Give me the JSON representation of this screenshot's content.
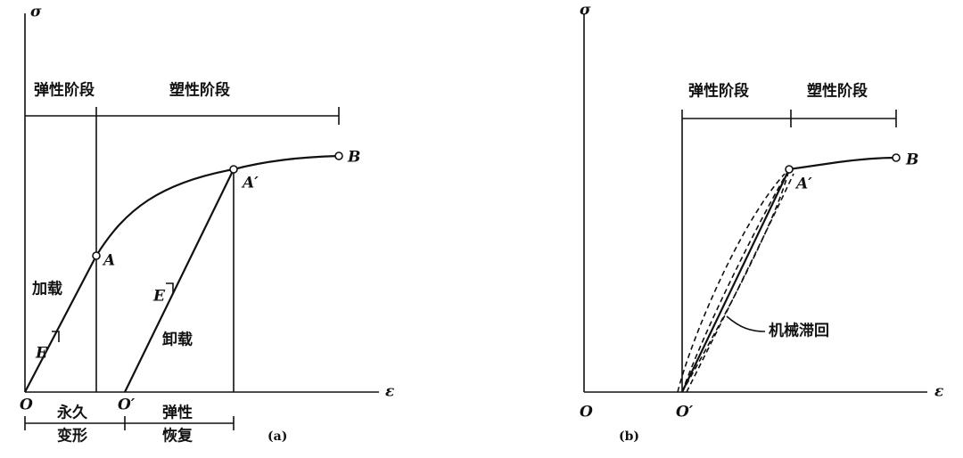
{
  "panel_a": {
    "sigma": "σ",
    "elastic_stage": "弹性阶段",
    "plastic_stage": "塑性阶段",
    "point_b": "B",
    "point_a_prime": "A′",
    "point_a": "A",
    "loading": "加载",
    "modulus_left": "E",
    "modulus_right": "E",
    "unloading": "卸载",
    "origin": "O",
    "origin_prime": "O′",
    "epsilon": "ε",
    "permanent_1": "永久",
    "permanent_2": "变形",
    "recovery_1": "弹性",
    "recovery_2": "恢复",
    "caption": "(a)"
  },
  "panel_b": {
    "sigma": "σ",
    "elastic_stage": "弹性阶段",
    "plastic_stage": "塑性阶段",
    "point_b": "B",
    "point_a_prime": "A′",
    "hysteresis": "机械滞回",
    "origin": "O",
    "origin_prime": "O′",
    "epsilon": "ε",
    "caption": "(b)"
  }
}
